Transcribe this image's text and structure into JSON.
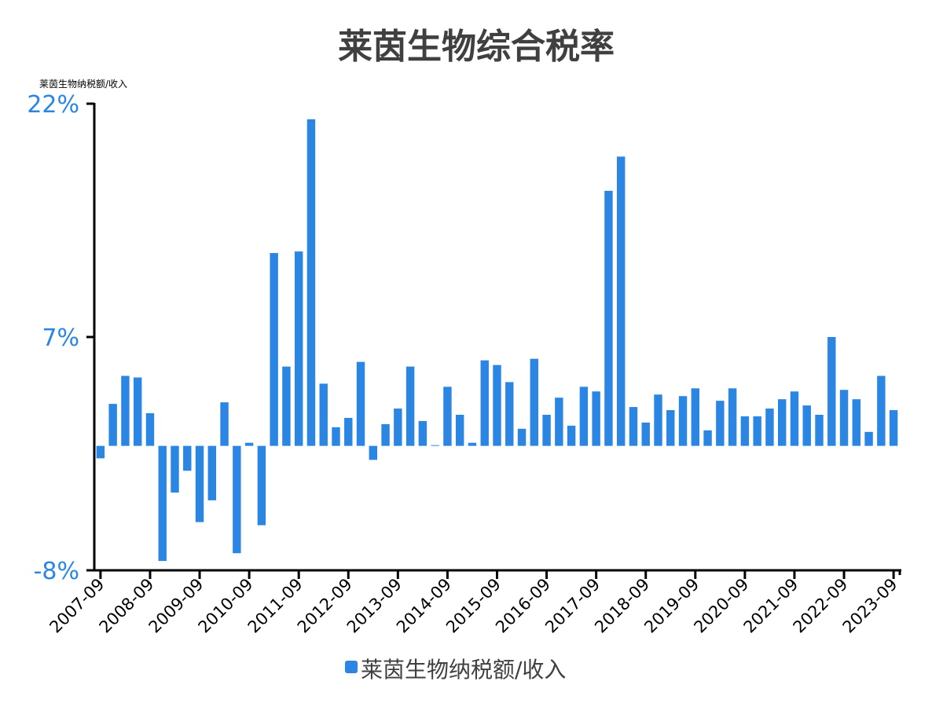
{
  "chart_data": {
    "type": "bar",
    "title": "莱茵生物综合税率",
    "unit_label": "莱茵生物纳税额/收入",
    "accent_color": "#2a86e2",
    "axis_color": "#000000",
    "ylim": [
      -8,
      22
    ],
    "yticks": [
      {
        "value": 22,
        "label": "22%"
      },
      {
        "value": 7,
        "label": "7%"
      },
      {
        "value": -8,
        "label": "-8%"
      }
    ],
    "xtick_labels": [
      "2007-09",
      "2008-09",
      "2009-09",
      "2010-09",
      "2011-09",
      "2012-09",
      "2013-09",
      "2014-09",
      "2015-09",
      "2016-09",
      "2017-09",
      "2018-09",
      "2019-09",
      "2020-09",
      "2021-09",
      "2022-09",
      "2023-09"
    ],
    "series": [
      {
        "name": "莱茵生物纳税额/收入",
        "values": [
          -0.8,
          2.7,
          4.5,
          4.4,
          2.1,
          -7.4,
          -3.0,
          -1.6,
          -4.9,
          -3.5,
          2.8,
          -6.9,
          0.2,
          -5.1,
          12.4,
          5.1,
          12.5,
          21.0,
          4.0,
          1.2,
          1.8,
          5.4,
          -0.9,
          1.4,
          2.4,
          5.1,
          1.6,
          0.05,
          3.8,
          2.0,
          0.2,
          5.5,
          5.2,
          4.1,
          1.1,
          5.6,
          2.0,
          3.1,
          1.3,
          3.8,
          3.5,
          16.4,
          18.6,
          2.5,
          1.5,
          3.3,
          2.3,
          3.2,
          3.7,
          1.0,
          2.9,
          3.7,
          1.9,
          1.9,
          2.4,
          3.0,
          3.5,
          2.6,
          2.0,
          7.0,
          3.6,
          3.0,
          0.9,
          4.5,
          2.3
        ]
      }
    ],
    "legend": {
      "position": "bottom-center",
      "label": "莱茵生物纳税额/收入"
    },
    "grid": false
  }
}
